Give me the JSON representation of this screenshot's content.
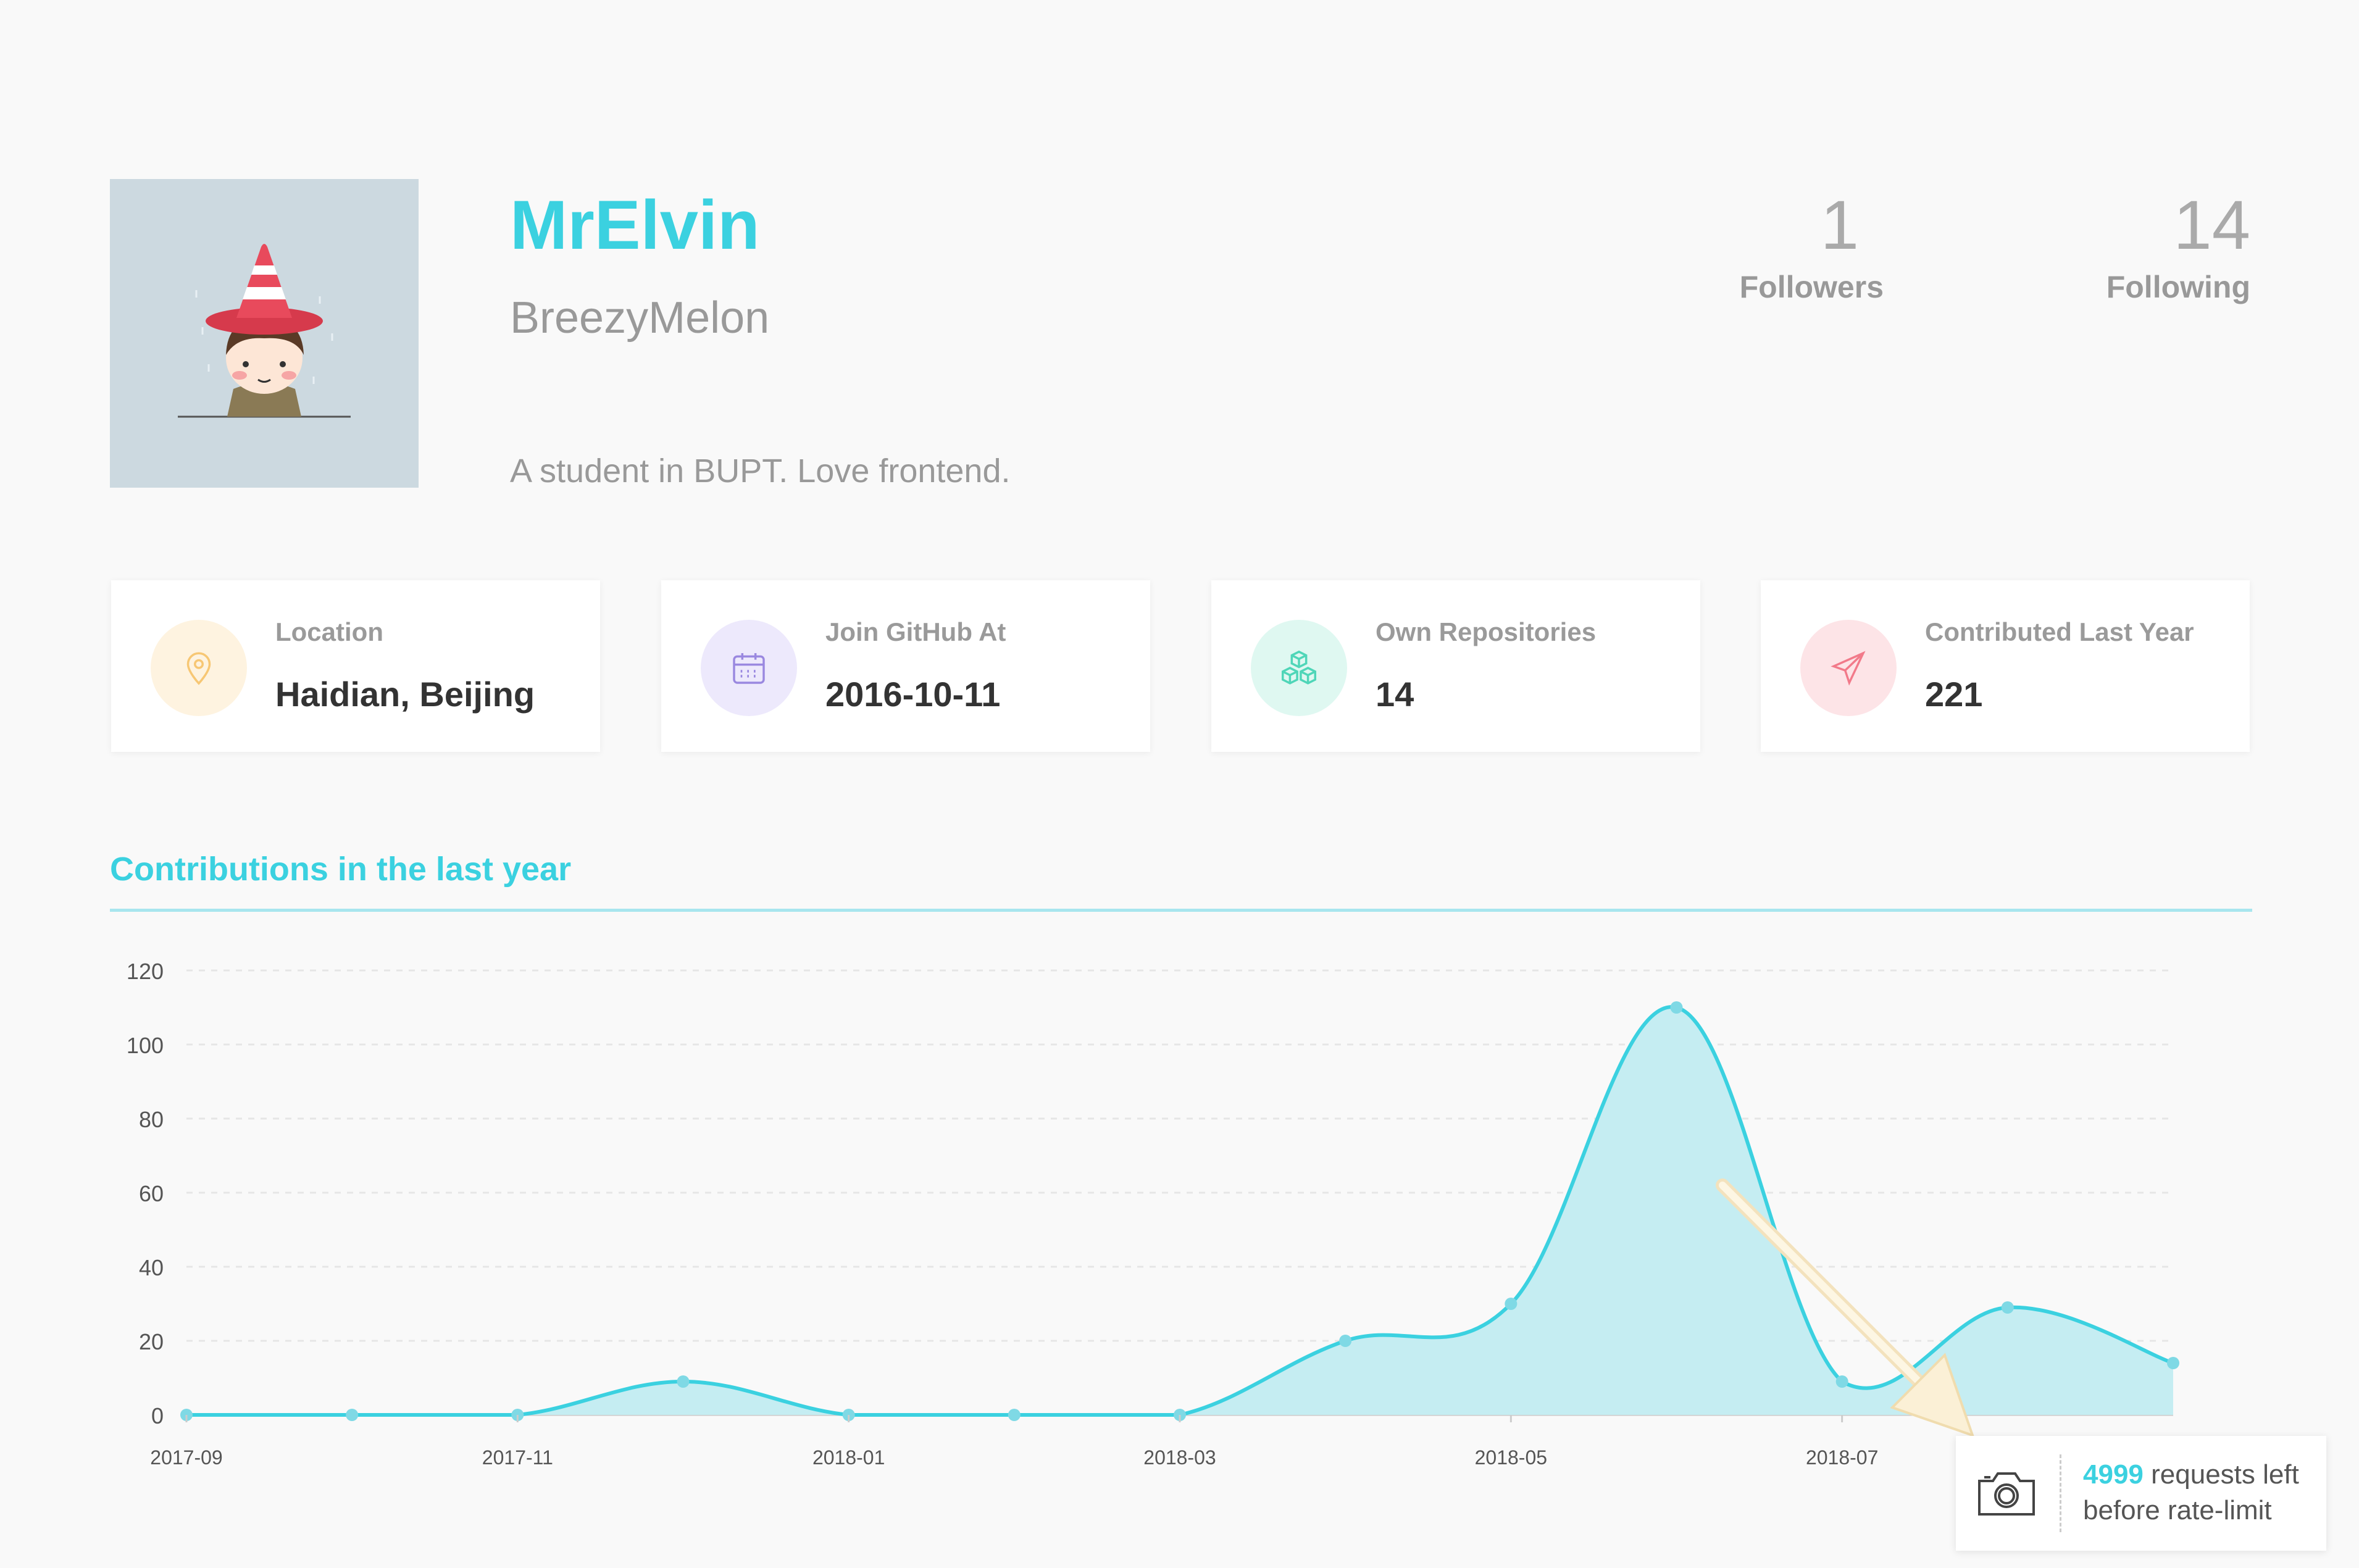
{
  "profile": {
    "name": "MrElvin",
    "login": "BreezyMelon",
    "bio": "A student in BUPT. Love frontend."
  },
  "stats": {
    "followers": {
      "count": "1",
      "label": "Followers"
    },
    "following": {
      "count": "14",
      "label": "Following"
    }
  },
  "cards": [
    {
      "title": "Location",
      "value": "Haidian, Beijing",
      "icon": "location-pin-icon",
      "color": "#f7c774",
      "bg": "#fef3e0"
    },
    {
      "title": "Join GitHub At",
      "value": "2016-10-11",
      "icon": "calendar-icon",
      "color": "#9a88e0",
      "bg": "#ede9fc"
    },
    {
      "title": "Own Repositories",
      "value": "14",
      "icon": "cubes-icon",
      "color": "#4fd6b8",
      "bg": "#dff8f1"
    },
    {
      "title": "Contributed Last Year",
      "value": "221",
      "icon": "paper-plane-icon",
      "color": "#f27a8a",
      "bg": "#fde4e7"
    }
  ],
  "section": {
    "title": "Contributions in the last year"
  },
  "chart_data": {
    "type": "area",
    "title": "Contributions in the last year",
    "x": [
      "2017-09",
      "2017-10",
      "2017-11",
      "2017-12",
      "2018-01",
      "2018-02",
      "2018-03",
      "2018-04",
      "2018-05",
      "2018-06",
      "2018-07",
      "2018-08",
      "2018-09"
    ],
    "values": [
      0,
      0,
      0,
      9,
      0,
      0,
      0,
      20,
      30,
      110,
      9,
      29,
      14
    ],
    "xtick_labels": [
      "2017-09",
      "2017-11",
      "2018-01",
      "2018-03",
      "2018-05",
      "2018-07"
    ],
    "yticks": [
      0,
      20,
      40,
      60,
      80,
      100,
      120
    ],
    "ylim": [
      0,
      120
    ],
    "grid": true,
    "line_color": "#3bd1e0",
    "fill_color": "#c5edf2"
  },
  "rate_limit": {
    "count": "4999",
    "text_line1": "requests left",
    "text_line2": "before rate-limit"
  }
}
